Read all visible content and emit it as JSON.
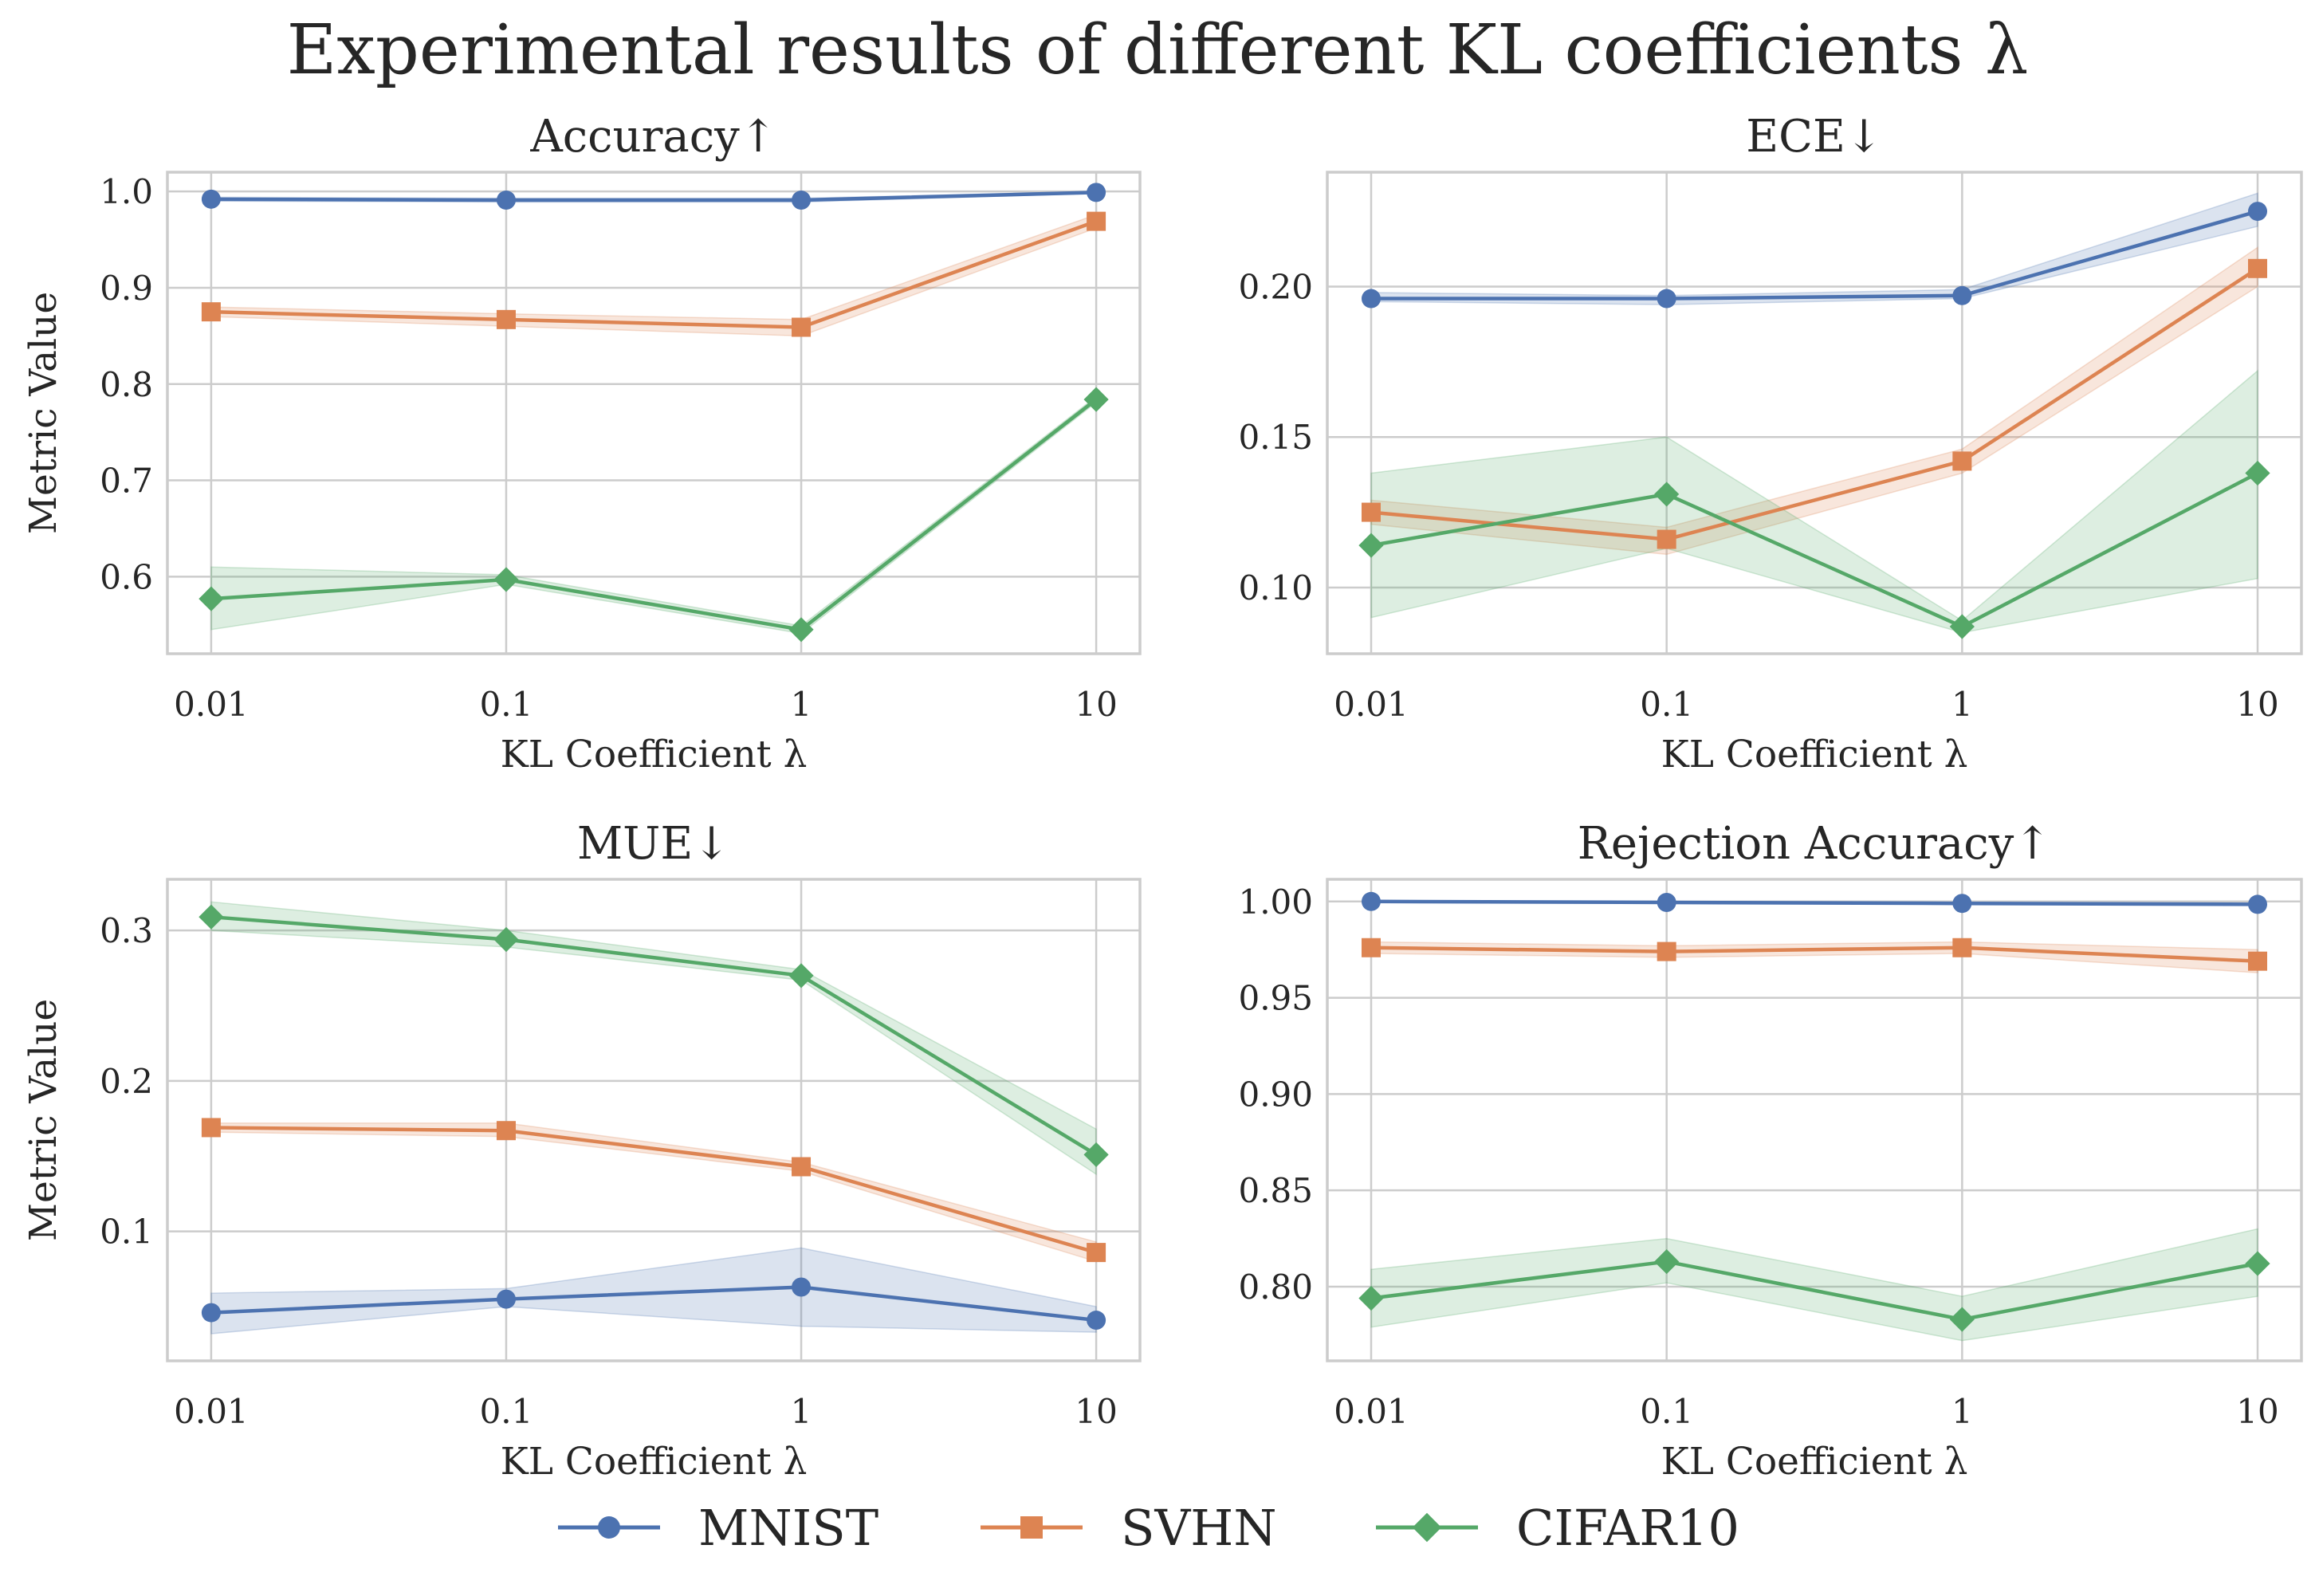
{
  "title": "Experimental results of different KL coefficients λ",
  "legend": {
    "position": "bottom-center",
    "entries": [
      {
        "label": "MNIST",
        "color": "#4c72b0",
        "marker": "circle"
      },
      {
        "label": "SVHN",
        "color": "#dd8452",
        "marker": "square"
      },
      {
        "label": "CIFAR10",
        "color": "#55a868",
        "marker": "diamond"
      }
    ]
  },
  "chart_data": [
    {
      "type": "line",
      "title": "Accuracy↑",
      "xlabel": "KL Coefficient λ",
      "ylabel": "Metric Value",
      "categories": [
        "0.01",
        "0.1",
        "1",
        "10"
      ],
      "ylim": [
        0.52,
        1.02
      ],
      "yticks": [
        0.6,
        0.7,
        0.8,
        0.9,
        1.0
      ],
      "ytick_labels": [
        "0.6",
        "0.7",
        "0.8",
        "0.9",
        "1.0"
      ],
      "grid": true,
      "series": [
        {
          "name": "MNIST",
          "values": [
            0.992,
            0.991,
            0.991,
            0.999
          ],
          "lower": [
            0.99,
            0.989,
            0.989,
            0.998
          ],
          "upper": [
            0.994,
            0.993,
            0.993,
            1.0
          ]
        },
        {
          "name": "SVHN",
          "values": [
            0.875,
            0.867,
            0.859,
            0.969
          ],
          "lower": [
            0.87,
            0.86,
            0.85,
            0.962
          ],
          "upper": [
            0.88,
            0.873,
            0.867,
            0.976
          ]
        },
        {
          "name": "CIFAR10",
          "values": [
            0.577,
            0.597,
            0.545,
            0.784
          ],
          "lower": [
            0.545,
            0.592,
            0.541,
            0.781
          ],
          "upper": [
            0.61,
            0.602,
            0.549,
            0.787
          ]
        }
      ]
    },
    {
      "type": "line",
      "title": "ECE↓",
      "xlabel": "KL Coefficient λ",
      "ylabel": "",
      "categories": [
        "0.01",
        "0.1",
        "1",
        "10"
      ],
      "ylim": [
        0.078,
        0.238
      ],
      "yticks": [
        0.1,
        0.15,
        0.2
      ],
      "ytick_labels": [
        "0.10",
        "0.15",
        "0.20"
      ],
      "grid": true,
      "series": [
        {
          "name": "MNIST",
          "values": [
            0.196,
            0.196,
            0.197,
            0.225
          ],
          "lower": [
            0.195,
            0.194,
            0.196,
            0.22
          ],
          "upper": [
            0.198,
            0.197,
            0.199,
            0.231
          ]
        },
        {
          "name": "SVHN",
          "values": [
            0.125,
            0.116,
            0.142,
            0.206
          ],
          "lower": [
            0.121,
            0.111,
            0.138,
            0.2
          ],
          "upper": [
            0.129,
            0.12,
            0.146,
            0.213
          ]
        },
        {
          "name": "CIFAR10",
          "values": [
            0.114,
            0.131,
            0.087,
            0.138
          ],
          "lower": [
            0.09,
            0.113,
            0.085,
            0.103
          ],
          "upper": [
            0.138,
            0.15,
            0.089,
            0.172
          ]
        }
      ]
    },
    {
      "type": "line",
      "title": "MUE↓",
      "xlabel": "KL Coefficient λ",
      "ylabel": "Metric Value",
      "categories": [
        "0.01",
        "0.1",
        "1",
        "10"
      ],
      "ylim": [
        0.014,
        0.334
      ],
      "yticks": [
        0.1,
        0.2,
        0.3
      ],
      "ytick_labels": [
        "0.1",
        "0.2",
        "0.3"
      ],
      "grid": true,
      "series": [
        {
          "name": "MNIST",
          "values": [
            0.046,
            0.055,
            0.063,
            0.041
          ],
          "lower": [
            0.032,
            0.05,
            0.037,
            0.033
          ],
          "upper": [
            0.059,
            0.062,
            0.089,
            0.05
          ]
        },
        {
          "name": "SVHN",
          "values": [
            0.169,
            0.167,
            0.143,
            0.086
          ],
          "lower": [
            0.166,
            0.163,
            0.14,
            0.08
          ],
          "upper": [
            0.172,
            0.172,
            0.146,
            0.093
          ]
        },
        {
          "name": "CIFAR10",
          "values": [
            0.309,
            0.294,
            0.27,
            0.151
          ],
          "lower": [
            0.3,
            0.289,
            0.267,
            0.138
          ],
          "upper": [
            0.319,
            0.3,
            0.274,
            0.168
          ]
        }
      ]
    },
    {
      "type": "line",
      "title": "Rejection Accuracy↑",
      "xlabel": "KL Coefficient λ",
      "ylabel": "",
      "categories": [
        "0.01",
        "0.1",
        "1",
        "10"
      ],
      "ylim": [
        0.7615,
        1.0115
      ],
      "yticks": [
        0.8,
        0.85,
        0.9,
        0.95,
        1.0
      ],
      "ytick_labels": [
        "0.80",
        "0.85",
        "0.90",
        "0.95",
        "1.00"
      ],
      "grid": true,
      "series": [
        {
          "name": "MNIST",
          "values": [
            1.0,
            0.9995,
            0.999,
            0.9985
          ],
          "lower": [
            0.9995,
            0.999,
            0.9985,
            0.998
          ],
          "upper": [
            1.0,
            1.0,
            0.9995,
            0.999
          ]
        },
        {
          "name": "SVHN",
          "values": [
            0.976,
            0.974,
            0.976,
            0.969
          ],
          "lower": [
            0.973,
            0.971,
            0.973,
            0.963
          ],
          "upper": [
            0.979,
            0.977,
            0.979,
            0.975
          ]
        },
        {
          "name": "CIFAR10",
          "values": [
            0.794,
            0.813,
            0.783,
            0.812
          ],
          "lower": [
            0.779,
            0.802,
            0.772,
            0.795
          ],
          "upper": [
            0.809,
            0.825,
            0.795,
            0.83
          ]
        }
      ]
    }
  ]
}
